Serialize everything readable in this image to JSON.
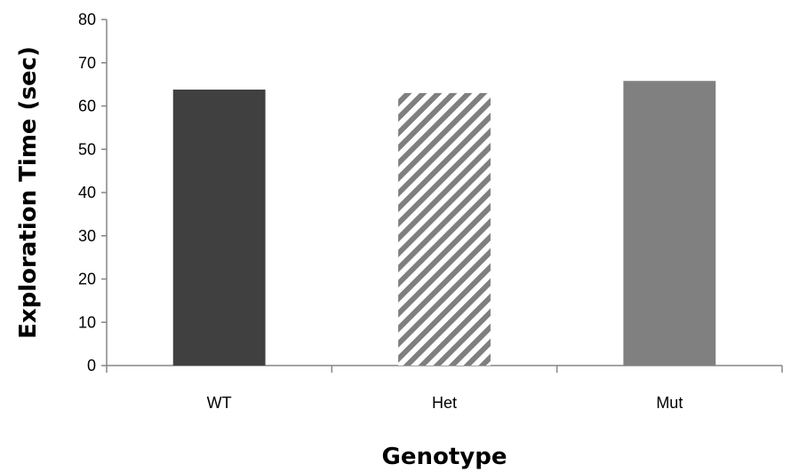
{
  "chart_data": {
    "type": "bar",
    "title": "",
    "xlabel": "Genotype",
    "ylabel": "Exploration Time (sec)",
    "categories": [
      "WT",
      "Het",
      "Mut"
    ],
    "values": [
      63.8,
      63.0,
      65.8
    ],
    "ylim": [
      0,
      80
    ],
    "yticks": [
      "0",
      "10",
      "20",
      "30",
      "40",
      "50",
      "60",
      "70",
      "80"
    ],
    "grid": false,
    "legend": "none",
    "bar_styles": [
      {
        "fill": "solid",
        "color": "#404040"
      },
      {
        "fill": "diagonal-stripes",
        "color": "#7f7f7f"
      },
      {
        "fill": "solid",
        "color": "#808080"
      }
    ]
  }
}
